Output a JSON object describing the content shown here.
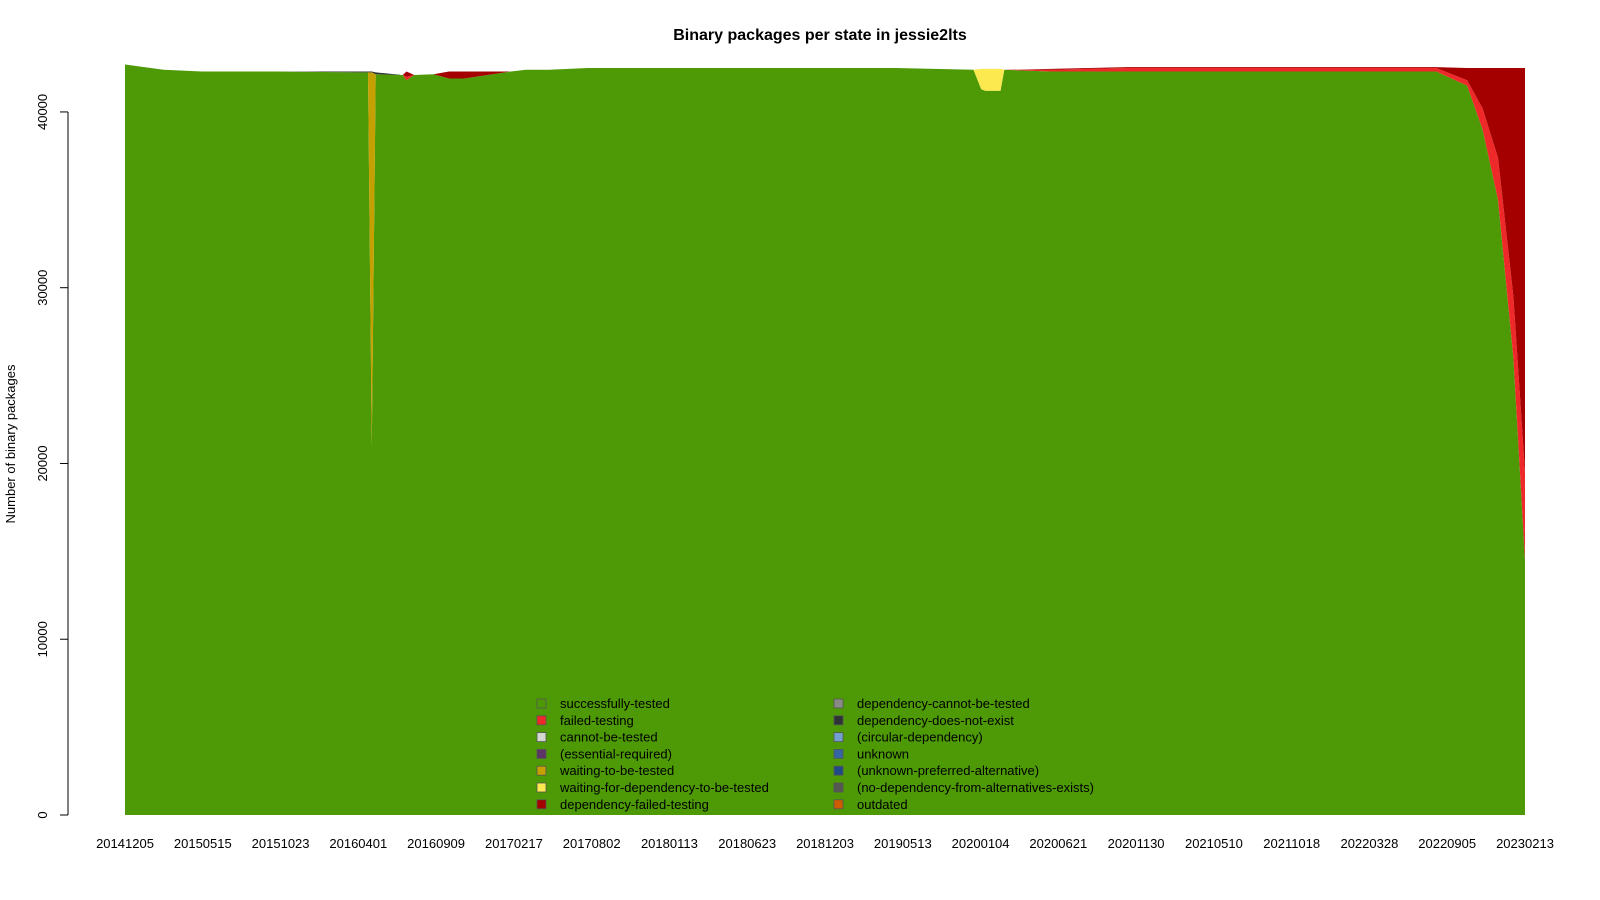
{
  "chart_data": {
    "type": "area",
    "stacked": true,
    "title": "Binary packages per state in jessie2lts",
    "xlabel": "",
    "ylabel": "Number of binary packages",
    "ylim": [
      0,
      42500
    ],
    "yticks": [
      0,
      10000,
      20000,
      30000,
      40000
    ],
    "x_tick_labels": [
      "20141205",
      "20150515",
      "20151023",
      "20160401",
      "20160909",
      "20170217",
      "20170802",
      "20180113",
      "20180623",
      "20181203",
      "20190513",
      "20200104",
      "20200621",
      "20201130",
      "20210510",
      "20211018",
      "20220328",
      "20220905",
      "20230213"
    ],
    "grid": false,
    "legend_position": "bottom-center",
    "legend": [
      {
        "name": "successfully-tested",
        "color": "#4d9a06"
      },
      {
        "name": "failed-testing",
        "color": "#ef2929"
      },
      {
        "name": "cannot-be-tested",
        "color": "#d3d7cf"
      },
      {
        "name": "(essential-required)",
        "color": "#5c3566"
      },
      {
        "name": "waiting-to-be-tested",
        "color": "#c4a000"
      },
      {
        "name": "waiting-for-dependency-to-be-tested",
        "color": "#fce94f"
      },
      {
        "name": "dependency-failed-testing",
        "color": "#a40000"
      },
      {
        "name": "dependency-cannot-be-tested",
        "color": "#888a85"
      },
      {
        "name": "dependency-does-not-exist",
        "color": "#2e3436"
      },
      {
        "name": "(circular-dependency)",
        "color": "#729fcf"
      },
      {
        "name": "unknown",
        "color": "#3465a4"
      },
      {
        "name": "(unknown-preferred-alternative)",
        "color": "#204a87"
      },
      {
        "name": "(no-dependency-from-alternatives-exists)",
        "color": "#555753"
      },
      {
        "name": "outdated",
        "color": "#ce5c00"
      }
    ],
    "x": [
      0,
      0.5,
      1,
      2,
      3,
      3.15,
      3.2,
      3.25,
      3.6,
      3.65,
      3.75,
      4,
      4.2,
      4.4,
      5,
      5.2,
      5.5,
      6,
      7,
      8,
      9,
      10,
      11,
      11.1,
      11.15,
      11.35,
      11.4,
      12,
      12.5,
      13,
      14,
      15,
      16,
      17,
      17.4,
      17.6,
      17.8,
      18,
      18.15
    ],
    "series": [
      {
        "name": "successfully-tested",
        "values": [
          42700,
          42400,
          42300,
          42300,
          42250,
          42250,
          21000,
          42150,
          42100,
          41800,
          42100,
          42150,
          41900,
          41900,
          42300,
          42400,
          42400,
          42500,
          42500,
          42500,
          42500,
          42500,
          42400,
          41300,
          41200,
          41200,
          42400,
          42300,
          42300,
          42300,
          42300,
          42300,
          42300,
          42300,
          41500,
          39000,
          35000,
          26000,
          14500
        ]
      },
      {
        "name": "failed-testing",
        "values": [
          0,
          0,
          0,
          0,
          0,
          0,
          0,
          0,
          0,
          200,
          0,
          0,
          0,
          0,
          0,
          0,
          0,
          0,
          0,
          0,
          0,
          0,
          0,
          0,
          0,
          0,
          0,
          100,
          150,
          200,
          200,
          200,
          200,
          200,
          300,
          1200,
          2400,
          3500,
          5000
        ]
      },
      {
        "name": "waiting-to-be-tested",
        "values": [
          0,
          0,
          0,
          0,
          0,
          0,
          21250,
          0,
          0,
          0,
          0,
          0,
          0,
          0,
          0,
          0,
          0,
          0,
          0,
          0,
          0,
          0,
          0,
          0,
          0,
          0,
          0,
          0,
          0,
          0,
          0,
          0,
          0,
          0,
          0,
          0,
          0,
          0,
          0
        ]
      },
      {
        "name": "waiting-for-dependency-to-be-tested",
        "values": [
          0,
          0,
          0,
          0,
          0,
          0,
          0,
          0,
          0,
          0,
          0,
          0,
          0,
          0,
          0,
          0,
          0,
          0,
          0,
          0,
          0,
          0,
          0,
          1150,
          1250,
          1250,
          0,
          0,
          0,
          0,
          0,
          0,
          0,
          0,
          0,
          0,
          0,
          0,
          0
        ]
      },
      {
        "name": "dependency-failed-testing",
        "values": [
          0,
          0,
          0,
          0,
          0,
          0,
          0,
          0,
          0,
          300,
          0,
          0,
          400,
          400,
          0,
          0,
          0,
          0,
          0,
          0,
          0,
          0,
          0,
          0,
          0,
          0,
          0,
          50,
          50,
          50,
          50,
          50,
          50,
          50,
          700,
          2300,
          5100,
          13000,
          23000
        ]
      },
      {
        "name": "dependency-does-not-exist",
        "values": [
          0,
          0,
          0,
          0,
          50,
          50,
          50,
          100,
          0,
          0,
          0,
          0,
          0,
          0,
          0,
          0,
          0,
          0,
          0,
          0,
          0,
          0,
          0,
          0,
          0,
          0,
          0,
          0,
          0,
          0,
          0,
          0,
          0,
          0,
          0,
          0,
          0,
          0,
          0
        ]
      }
    ]
  }
}
